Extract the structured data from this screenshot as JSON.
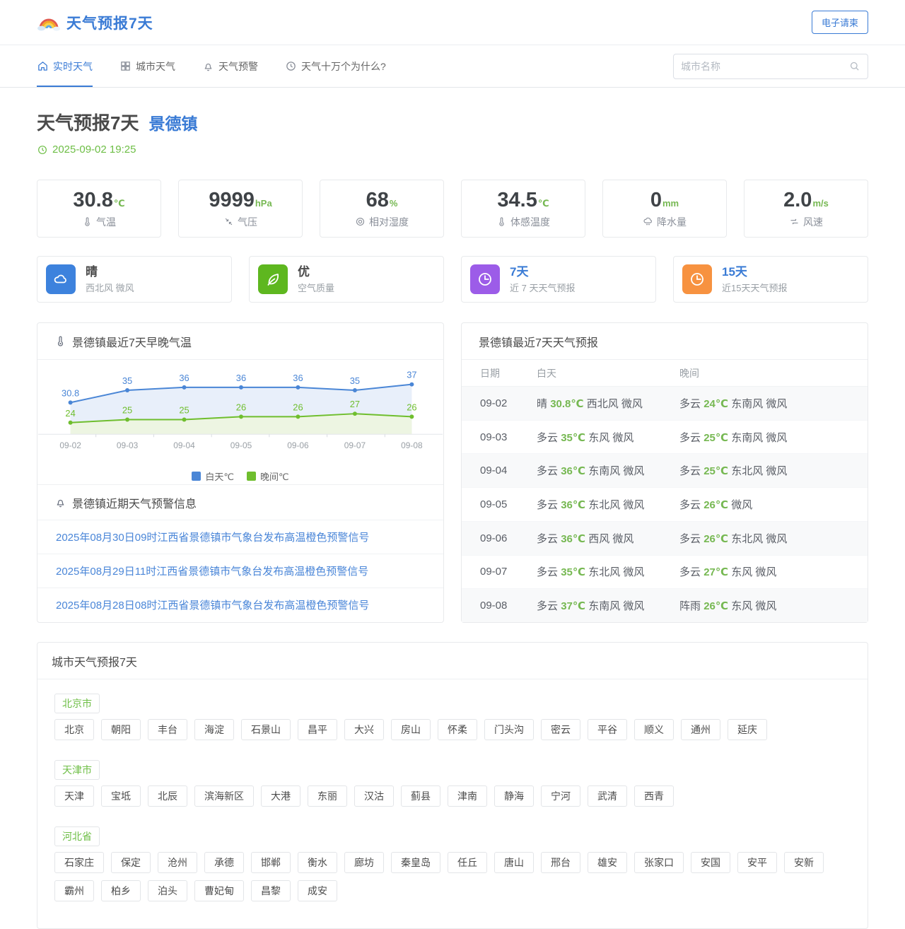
{
  "header": {
    "logo_icon": "rainbow-icon",
    "logo_text": "天气预报7天",
    "invite_button": "电子请柬"
  },
  "nav": {
    "items": [
      {
        "label": "实时天气",
        "icon": "home",
        "active": true
      },
      {
        "label": "城市天气",
        "icon": "grid",
        "active": false
      },
      {
        "label": "天气预警",
        "icon": "bell",
        "active": false
      },
      {
        "label": "天气十万个为什么?",
        "icon": "clock",
        "active": false
      }
    ],
    "search_placeholder": "城市名称",
    "search_icon": "search-icon"
  },
  "page": {
    "title": "天气预报7天",
    "city": "景德镇",
    "timestamp": "2025-09-02 19:25",
    "timestamp_icon": "clock",
    "accent_color": "#3a7bd5",
    "green_color": "#76b852"
  },
  "stats": [
    {
      "value": "30.8",
      "unit": "℃",
      "label": "气温",
      "icon": "thermometer"
    },
    {
      "value": "9999",
      "unit": "hPa",
      "label": "气压",
      "icon": "pressure"
    },
    {
      "value": "68",
      "unit": "%",
      "label": "相对湿度",
      "icon": "humidity"
    },
    {
      "value": "34.5",
      "unit": "℃",
      "label": "体感温度",
      "icon": "thermometer"
    },
    {
      "value": "0",
      "unit": "mm",
      "label": "降水量",
      "icon": "rain"
    },
    {
      "value": "2.0",
      "unit": "m/s",
      "label": "风速",
      "icon": "wind"
    }
  ],
  "quick_cards": [
    {
      "title": "晴",
      "subtitle": "西北风 微风",
      "icon": "cloud",
      "color": "#3d82dd",
      "title_blue": false
    },
    {
      "title": "优",
      "subtitle": "空气质量",
      "icon": "leaf",
      "color": "#5eb71f",
      "title_blue": false
    },
    {
      "title": "7天",
      "subtitle": "近 7 天天气预报",
      "icon": "pie",
      "color": "#9c5ce8",
      "title_blue": true
    },
    {
      "title": "15天",
      "subtitle": "近15天天气预报",
      "icon": "pie",
      "color": "#f79240",
      "title_blue": true
    }
  ],
  "chart_panel": {
    "title": "景德镇最近7天早晚气温",
    "title_icon": "thermometer",
    "chart_data": {
      "type": "line",
      "categories": [
        "09-02",
        "09-03",
        "09-04",
        "09-05",
        "09-06",
        "09-07",
        "09-08"
      ],
      "series": [
        {
          "name": "白天℃",
          "values": [
            30.8,
            35,
            36,
            36,
            36,
            35,
            37
          ],
          "color": "#4a86d6",
          "fill": "#e8effa"
        },
        {
          "name": "晚间℃",
          "values": [
            24,
            25,
            25,
            26,
            26,
            27,
            26
          ],
          "color": "#6fbe2e",
          "fill": "#edf5e2"
        }
      ],
      "ylim": [
        20,
        42
      ],
      "grid": false,
      "legend_position": "bottom",
      "xlabel": "",
      "ylabel": ""
    }
  },
  "alerts_panel": {
    "title": "景德镇近期天气预警信息",
    "title_icon": "bell",
    "items": [
      "2025年08月30日09时江西省景德镇市气象台发布高温橙色预警信号",
      "2025年08月29日11时江西省景德镇市气象台发布高温橙色预警信号",
      "2025年08月28日08时江西省景德镇市气象台发布高温橙色预警信号"
    ]
  },
  "forecast_panel": {
    "title": "景德镇最近7天天气预报",
    "headers": [
      "日期",
      "白天",
      "晚间"
    ],
    "rows": [
      {
        "date": "09-02",
        "day": {
          "cond": "晴",
          "temp": "30.8℃",
          "wind": "西北风 微风"
        },
        "night": {
          "cond": "多云",
          "temp": "24℃",
          "wind": "东南风 微风"
        }
      },
      {
        "date": "09-03",
        "day": {
          "cond": "多云",
          "temp": "35℃",
          "wind": "东风 微风"
        },
        "night": {
          "cond": "多云",
          "temp": "25℃",
          "wind": "东南风 微风"
        }
      },
      {
        "date": "09-04",
        "day": {
          "cond": "多云",
          "temp": "36℃",
          "wind": "东南风 微风"
        },
        "night": {
          "cond": "多云",
          "temp": "25℃",
          "wind": "东北风 微风"
        }
      },
      {
        "date": "09-05",
        "day": {
          "cond": "多云",
          "temp": "36℃",
          "wind": "东北风 微风"
        },
        "night": {
          "cond": "多云",
          "temp": "26℃",
          "wind": "微风"
        }
      },
      {
        "date": "09-06",
        "day": {
          "cond": "多云",
          "temp": "36℃",
          "wind": "西风 微风"
        },
        "night": {
          "cond": "多云",
          "temp": "26℃",
          "wind": "东北风 微风"
        }
      },
      {
        "date": "09-07",
        "day": {
          "cond": "多云",
          "temp": "35℃",
          "wind": "东北风 微风"
        },
        "night": {
          "cond": "多云",
          "temp": "27℃",
          "wind": "东风 微风"
        }
      },
      {
        "date": "09-08",
        "day": {
          "cond": "多云",
          "temp": "37℃",
          "wind": "东南风 微风"
        },
        "night": {
          "cond": "阵雨",
          "temp": "26℃",
          "wind": "东风 微风"
        }
      }
    ]
  },
  "cities_panel": {
    "title": "城市天气预报7天",
    "groups": [
      {
        "name": "北京市",
        "cities": [
          "北京",
          "朝阳",
          "丰台",
          "海淀",
          "石景山",
          "昌平",
          "大兴",
          "房山",
          "怀柔",
          "门头沟",
          "密云",
          "平谷",
          "顺义",
          "通州",
          "延庆"
        ]
      },
      {
        "name": "天津市",
        "cities": [
          "天津",
          "宝坻",
          "北辰",
          "滨海新区",
          "大港",
          "东丽",
          "汉沽",
          "蓟县",
          "津南",
          "静海",
          "宁河",
          "武清",
          "西青"
        ]
      },
      {
        "name": "河北省",
        "cities": [
          "石家庄",
          "保定",
          "沧州",
          "承德",
          "邯郸",
          "衡水",
          "廊坊",
          "秦皇岛",
          "任丘",
          "唐山",
          "邢台",
          "雄安",
          "张家口",
          "安国",
          "安平",
          "安新",
          "霸州",
          "柏乡",
          "泊头",
          "曹妃甸",
          "昌黎",
          "成安"
        ]
      }
    ]
  }
}
